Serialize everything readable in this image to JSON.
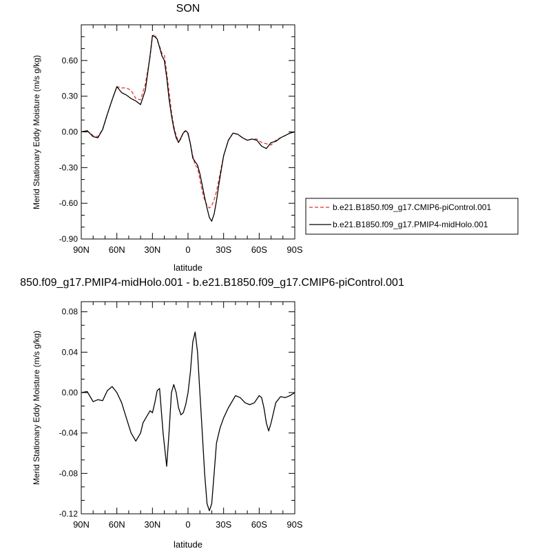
{
  "chart_data": [
    {
      "type": "line",
      "title": "SON",
      "xlabel": "latitude",
      "ylabel": "Merid Stationary Eddy Moisture (m/s g/kg)",
      "xlim": [
        90,
        -90
      ],
      "ylim": [
        -0.9,
        0.9
      ],
      "x_ticks": [
        90,
        60,
        30,
        0,
        -30,
        -60,
        -90
      ],
      "x_tick_labels": [
        "90N",
        "60N",
        "30N",
        "0",
        "30S",
        "60S",
        "90S"
      ],
      "y_ticks": [
        -0.9,
        -0.6,
        -0.3,
        0.0,
        0.3,
        0.6
      ],
      "y_tick_labels": [
        "-0.90",
        "-0.60",
        "-0.30",
        "0.00",
        "0.30",
        "0.60"
      ],
      "legend_position": "outside-right",
      "series": [
        {
          "name": "b.e21.B1850.f09_g17.CMIP6-piControl.001",
          "color": "#e8322c",
          "dash": "dashed",
          "x": [
            90,
            85,
            80,
            76,
            72,
            68,
            64,
            60,
            56,
            52,
            48,
            44,
            40,
            36,
            32,
            30,
            28,
            26,
            24,
            22,
            20,
            18,
            16,
            14,
            12,
            10,
            8,
            6,
            4,
            2,
            0,
            -2,
            -4,
            -6,
            -8,
            -10,
            -12,
            -14,
            -16,
            -18,
            -20,
            -22,
            -24,
            -26,
            -28,
            -30,
            -34,
            -38,
            -42,
            -46,
            -50,
            -54,
            -58,
            -62,
            -66,
            -70,
            -74,
            -78,
            -82,
            -86,
            -90
          ],
          "y": [
            0.0,
            0.01,
            -0.03,
            -0.04,
            0.02,
            0.15,
            0.27,
            0.38,
            0.37,
            0.37,
            0.35,
            0.28,
            0.27,
            0.4,
            0.63,
            0.8,
            0.82,
            0.77,
            0.72,
            0.66,
            0.65,
            0.5,
            0.34,
            0.17,
            0.05,
            -0.03,
            -0.08,
            -0.06,
            0.0,
            0.01,
            -0.02,
            -0.1,
            -0.2,
            -0.28,
            -0.3,
            -0.4,
            -0.5,
            -0.57,
            -0.62,
            -0.64,
            -0.62,
            -0.57,
            -0.5,
            -0.4,
            -0.3,
            -0.2,
            -0.07,
            -0.01,
            -0.02,
            -0.05,
            -0.07,
            -0.06,
            -0.06,
            -0.09,
            -0.1,
            -0.11,
            -0.07,
            -0.05,
            -0.03,
            -0.01,
            0.0
          ]
        },
        {
          "name": "b.e21.B1850.f09_g17.PMIP4-midHolo.001",
          "color": "#000000",
          "dash": "solid",
          "x": [
            90,
            85,
            80,
            76,
            72,
            68,
            64,
            60,
            56,
            52,
            48,
            44,
            40,
            36,
            32,
            30,
            28,
            26,
            24,
            22,
            20,
            18,
            16,
            14,
            12,
            10,
            8,
            6,
            4,
            2,
            0,
            -2,
            -4,
            -6,
            -8,
            -10,
            -12,
            -14,
            -16,
            -18,
            -20,
            -22,
            -24,
            -26,
            -28,
            -30,
            -34,
            -38,
            -42,
            -46,
            -50,
            -54,
            -58,
            -62,
            -66,
            -70,
            -74,
            -78,
            -82,
            -86,
            -90
          ],
          "y": [
            0.0,
            0.01,
            -0.04,
            -0.05,
            0.02,
            0.15,
            0.27,
            0.38,
            0.33,
            0.31,
            0.28,
            0.26,
            0.23,
            0.35,
            0.64,
            0.81,
            0.8,
            0.78,
            0.71,
            0.64,
            0.6,
            0.46,
            0.28,
            0.14,
            0.03,
            -0.05,
            -0.09,
            -0.05,
            -0.01,
            0.01,
            -0.01,
            -0.1,
            -0.22,
            -0.25,
            -0.28,
            -0.35,
            -0.45,
            -0.55,
            -0.64,
            -0.72,
            -0.75,
            -0.69,
            -0.58,
            -0.44,
            -0.32,
            -0.2,
            -0.07,
            -0.01,
            -0.02,
            -0.05,
            -0.07,
            -0.06,
            -0.07,
            -0.12,
            -0.14,
            -0.09,
            -0.08,
            -0.05,
            -0.03,
            -0.01,
            0.0
          ]
        }
      ]
    },
    {
      "type": "line",
      "title": "850.f09_g17.PMIP4-midHolo.001 - b.e21.B1850.f09_g17.CMIP6-piControl.001",
      "xlabel": "latitude",
      "ylabel": "Merid Stationary Eddy Moisture (m/s g/kg)",
      "xlim": [
        90,
        -90
      ],
      "ylim": [
        -0.12,
        0.09
      ],
      "x_ticks": [
        90,
        60,
        30,
        0,
        -30,
        -60,
        -90
      ],
      "x_tick_labels": [
        "90N",
        "60N",
        "30N",
        "0",
        "30S",
        "60S",
        "90S"
      ],
      "y_ticks": [
        -0.12,
        -0.08,
        -0.04,
        0.0,
        0.04,
        0.08
      ],
      "y_tick_labels": [
        "-0.12",
        "-0.08",
        "-0.04",
        "0.00",
        "0.04",
        "0.08"
      ],
      "series": [
        {
          "color": "#000000",
          "dash": "solid",
          "x": [
            90,
            85,
            80,
            76,
            72,
            68,
            64,
            60,
            56,
            52,
            48,
            44,
            40,
            38,
            36,
            34,
            32,
            30,
            28,
            26,
            24,
            21,
            18,
            16,
            14,
            12,
            10,
            8,
            6,
            4,
            2,
            0,
            -2,
            -4,
            -6,
            -8,
            -10,
            -12,
            -14,
            -16,
            -18,
            -20,
            -22,
            -24,
            -27,
            -30,
            -34,
            -40,
            -44,
            -48,
            -52,
            -56,
            -60,
            -62,
            -64,
            -66,
            -68,
            -70,
            -74,
            -78,
            -82,
            -86,
            -90
          ],
          "y": [
            0.0,
            0.001,
            -0.009,
            -0.007,
            -0.008,
            0.002,
            0.006,
            0.0,
            -0.01,
            -0.025,
            -0.04,
            -0.048,
            -0.04,
            -0.03,
            -0.026,
            -0.022,
            -0.018,
            -0.02,
            -0.01,
            0.002,
            0.004,
            -0.04,
            -0.073,
            -0.04,
            0.0,
            0.008,
            0.0,
            -0.015,
            -0.022,
            -0.02,
            -0.012,
            0.0,
            0.02,
            0.05,
            0.06,
            0.04,
            0.0,
            -0.04,
            -0.08,
            -0.11,
            -0.117,
            -0.11,
            -0.08,
            -0.05,
            -0.035,
            -0.025,
            -0.015,
            -0.003,
            -0.005,
            -0.01,
            -0.012,
            -0.01,
            -0.003,
            -0.005,
            -0.015,
            -0.03,
            -0.038,
            -0.03,
            -0.01,
            -0.004,
            -0.005,
            -0.003,
            0.0
          ]
        }
      ]
    }
  ]
}
